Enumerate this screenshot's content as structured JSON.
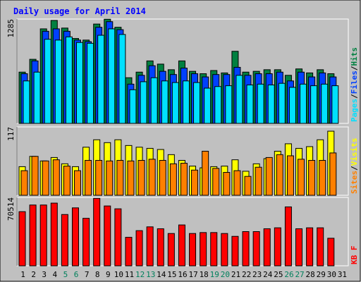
{
  "chart_data": {
    "type": "bar",
    "title": "Daily usage for April 2014",
    "categories": [
      "1",
      "2",
      "3",
      "4",
      "5",
      "6",
      "7",
      "8",
      "9",
      "10",
      "11",
      "12",
      "13",
      "14",
      "15",
      "16",
      "17",
      "18",
      "19",
      "20",
      "21",
      "22",
      "23",
      "24",
      "25",
      "26",
      "27",
      "28",
      "29",
      "30",
      "31"
    ],
    "weekend_days": [
      "5",
      "6",
      "12",
      "13",
      "19",
      "20",
      "26",
      "27"
    ],
    "panels": [
      {
        "id": "hits-files-pages",
        "ymax_label": "1285",
        "ymax": 1285,
        "side_labels": [
          "Pages",
          "Files",
          "Hits"
        ],
        "series": [
          {
            "name": "Hits",
            "color": "#008040",
            "values": [
              640,
              800,
              1180,
              1285,
              1190,
              1060,
              1040,
              1240,
              1300,
              1200,
              570,
              640,
              780,
              740,
              670,
              780,
              650,
              620,
              660,
              630,
              900,
              640,
              650,
              670,
              670,
              600,
              680,
              630,
              670,
              620,
              0
            ]
          },
          {
            "name": "Files",
            "color": "#0040ff",
            "values": [
              620,
              780,
              1150,
              1180,
              1150,
              1040,
              1020,
              1200,
              1270,
              1170,
              490,
              600,
              720,
              650,
              610,
              690,
              620,
              580,
              610,
              610,
              700,
              600,
              620,
              620,
              640,
              530,
              640,
              580,
              630,
              580,
              0
            ]
          },
          {
            "name": "Pages",
            "color": "#00e0ff",
            "values": [
              530,
              640,
              1050,
              1040,
              1080,
              1010,
              1000,
              1100,
              1180,
              1110,
              420,
              520,
              570,
              530,
              510,
              530,
              510,
              440,
              460,
              470,
              600,
              480,
              490,
              480,
              500,
              450,
              490,
              470,
              490,
              470,
              0
            ]
          }
        ]
      },
      {
        "id": "visits-sites",
        "ymax_label": "117",
        "ymax": 117,
        "side_labels": [
          "Sites",
          "Visits"
        ],
        "series": [
          {
            "name": "Visits",
            "color": "#ffff00",
            "values": [
              50,
              68,
              60,
              66,
              55,
              50,
              84,
              97,
              92,
              97,
              87,
              84,
              82,
              80,
              71,
              61,
              51,
              48,
              50,
              51,
              62,
              42,
              55,
              64,
              77,
              90,
              82,
              85,
              97,
              112,
              0
            ]
          },
          {
            "name": "Sites",
            "color": "#ff8000",
            "values": [
              43,
              68,
              60,
              62,
              51,
              43,
              61,
              61,
              60,
              61,
              60,
              61,
              63,
              61,
              55,
              56,
              44,
              77,
              47,
              40,
              43,
              33,
              49,
              66,
              71,
              69,
              63,
              61,
              61,
              74,
              0
            ]
          }
        ]
      },
      {
        "id": "kbytes",
        "ymax_label": "70514",
        "ymax": 70514,
        "side_labels": [
          "KB F"
        ],
        "series": [
          {
            "name": "KB F",
            "color": "#ff0000",
            "values": [
              57000,
              64000,
              64000,
              66000,
              54000,
              61000,
              50000,
              71000,
              63000,
              60000,
              30000,
              37000,
              41000,
              39000,
              34000,
              43000,
              34000,
              35000,
              35000,
              34000,
              31000,
              36000,
              36000,
              39000,
              40000,
              62000,
              39000,
              40000,
              40000,
              29000,
              0
            ]
          }
        ]
      }
    ]
  },
  "colors": {
    "background": "#c0c0c0",
    "frame": "#ffffff",
    "title": "#0000ff",
    "weekday_label": "#000000",
    "weekend_label": "#00805c"
  }
}
